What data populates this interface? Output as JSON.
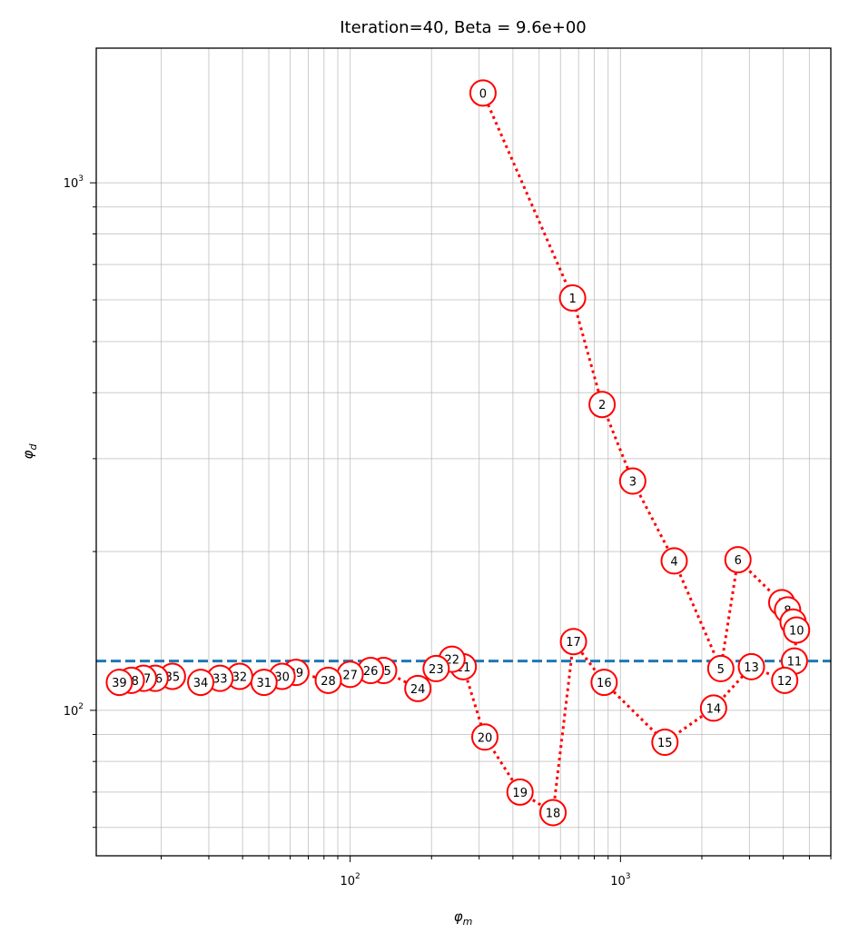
{
  "chart_data": {
    "type": "scatter",
    "title": "Iteration=40, Beta = 9.6e+00",
    "xlabel": "φ",
    "xlabel_sub": "m",
    "ylabel": "φ",
    "ylabel_sub": "d",
    "xscale": "log",
    "yscale": "log",
    "xlim": [
      11.5,
      6000
    ],
    "ylim": [
      53,
      1800
    ],
    "grid": true,
    "x_tick_labels": [
      {
        "base": "10",
        "exp": "2",
        "value": 100
      },
      {
        "base": "10",
        "exp": "3",
        "value": 1000
      }
    ],
    "y_tick_labels": [
      {
        "base": "10",
        "exp": "2",
        "value": 100
      },
      {
        "base": "10",
        "exp": "3",
        "value": 1000
      }
    ],
    "reference_line": {
      "y": 124,
      "color": "#1f77b4",
      "style": "dashed"
    },
    "line_color": "#ff0000",
    "marker_edge_color": "#ff0000",
    "series": [
      {
        "labels": [
          "0",
          "1",
          "2",
          "3",
          "4",
          "5",
          "6",
          "7",
          "8",
          "9",
          "10",
          "11",
          "12",
          "13",
          "14",
          "15",
          "16",
          "17",
          "18",
          "19",
          "20",
          "21",
          "22",
          "23",
          "24",
          "25",
          "26",
          "27",
          "28",
          "29",
          "30",
          "31",
          "32",
          "33",
          "34",
          "35",
          "36",
          "37",
          "38",
          "39"
        ],
        "x": [
          310,
          665,
          855,
          1110,
          1580,
          2350,
          2720,
          3950,
          4150,
          4350,
          4480,
          4400,
          4050,
          3050,
          2210,
          1460,
          870,
          670,
          563,
          425,
          315,
          262,
          238,
          208,
          178,
          133,
          119,
          100,
          83,
          63,
          56,
          48,
          39,
          33,
          28,
          22,
          19,
          17.2,
          15.5,
          14
        ],
        "y": [
          1480,
          605,
          380,
          272,
          192,
          120,
          193,
          160,
          155,
          147,
          142,
          124,
          114,
          121,
          101,
          87,
          113,
          135,
          64,
          70,
          89,
          121,
          125,
          120,
          110,
          119,
          119,
          117,
          114,
          118,
          116,
          113,
          116,
          115,
          113,
          116,
          115,
          115,
          114,
          113
        ]
      }
    ]
  }
}
